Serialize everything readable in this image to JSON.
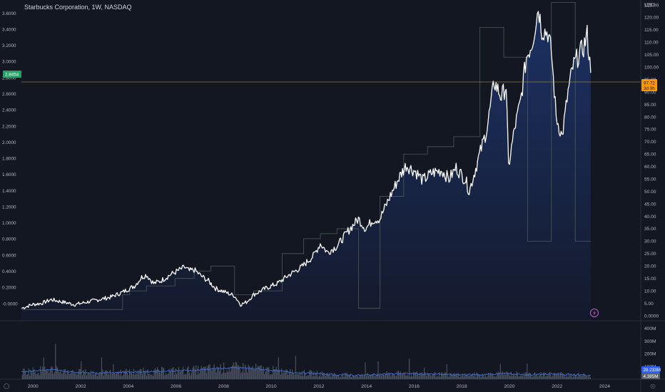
{
  "header": {
    "title": "Starbucks Corporation, 1W, NASDAQ",
    "currency": "USD"
  },
  "badges": {
    "left_value": "2.8454",
    "last_price": "97.72",
    "last_countdown": "3d 9h",
    "volume_avg": "28.233M",
    "volume_last": "4.385M"
  },
  "colors": {
    "background": "#131722",
    "price_line": "#ffffff",
    "area_top": "#1c3163",
    "area_bottom": "#141a2c",
    "step_line": "#4b5a58",
    "left_badge": "#26a269",
    "price_badge": "#ff9800",
    "volume_bars": "#4e5566",
    "volume_ma": "#3f6fd1",
    "bolt_icon": "#c35bd6"
  },
  "chart_data": {
    "type": "line",
    "title": "Starbucks Corporation, 1W, NASDAQ",
    "right_axis_unit": "USD",
    "right_axis_ticks": [
      "125.00",
      "120.00",
      "115.00",
      "110.00",
      "105.00",
      "100.00",
      "95.00",
      "90.00",
      "85.00",
      "80.00",
      "75.00",
      "70.00",
      "65.00",
      "60.00",
      "55.00",
      "50.00",
      "45.00",
      "40.00",
      "35.00",
      "30.00",
      "25.00",
      "20.00",
      "15.00",
      "10.00",
      "5.00",
      "0.0000"
    ],
    "left_axis_ticks": [
      "3.6000",
      "3.4000",
      "3.2000",
      "3.0000",
      "2.8000",
      "2.6000",
      "2.4000",
      "2.2000",
      "2.0000",
      "1.8000",
      "1.6000",
      "1.4000",
      "1.2000",
      "1.0000",
      "0.8000",
      "0.6000",
      "0.4000",
      "0.2000",
      "-0.0000"
    ],
    "x_axis_ticks": [
      "2000",
      "2002",
      "2004",
      "2006",
      "2008",
      "2010",
      "2012",
      "2014",
      "2016",
      "2018",
      "2020",
      "2022",
      "2024"
    ],
    "volume_axis_ticks": [
      "400M",
      "300M",
      "200M",
      "100M"
    ],
    "ylim": [
      -2,
      127
    ],
    "xlim": [
      1999.75,
      2025.75
    ],
    "price_series": [
      [
        1999.75,
        3.0
      ],
      [
        2000.2,
        4.5
      ],
      [
        2000.6,
        5.0
      ],
      [
        2001.0,
        6.5
      ],
      [
        2001.5,
        5.5
      ],
      [
        2002.0,
        4.5
      ],
      [
        2002.5,
        5.5
      ],
      [
        2003.0,
        6.5
      ],
      [
        2003.5,
        7.5
      ],
      [
        2004.0,
        9.5
      ],
      [
        2004.5,
        12.0
      ],
      [
        2004.8,
        15.5
      ],
      [
        2005.0,
        16.5
      ],
      [
        2005.3,
        13.0
      ],
      [
        2005.6,
        14.0
      ],
      [
        2006.0,
        16.5
      ],
      [
        2006.3,
        18.0
      ],
      [
        2006.6,
        19.5
      ],
      [
        2006.8,
        18.0
      ],
      [
        2007.0,
        18.5
      ],
      [
        2007.3,
        16.0
      ],
      [
        2007.6,
        14.0
      ],
      [
        2007.9,
        11.0
      ],
      [
        2008.3,
        9.5
      ],
      [
        2008.7,
        8.0
      ],
      [
        2008.95,
        4.5
      ],
      [
        2009.2,
        5.5
      ],
      [
        2009.5,
        8.5
      ],
      [
        2010.0,
        11.0
      ],
      [
        2010.5,
        13.0
      ],
      [
        2011.0,
        16.5
      ],
      [
        2011.5,
        19.5
      ],
      [
        2012.0,
        24.0
      ],
      [
        2012.3,
        29.0
      ],
      [
        2012.6,
        25.5
      ],
      [
        2013.0,
        28.0
      ],
      [
        2013.5,
        34.5
      ],
      [
        2013.9,
        39.0
      ],
      [
        2014.2,
        35.0
      ],
      [
        2014.5,
        38.5
      ],
      [
        2014.8,
        39.0
      ],
      [
        2015.2,
        47.5
      ],
      [
        2015.6,
        55.5
      ],
      [
        2015.9,
        60.5
      ],
      [
        2016.3,
        58.0
      ],
      [
        2016.6,
        54.5
      ],
      [
        2017.0,
        57.5
      ],
      [
        2017.4,
        58.5
      ],
      [
        2017.7,
        55.0
      ],
      [
        2018.0,
        59.5
      ],
      [
        2018.4,
        54.5
      ],
      [
        2018.55,
        50.0
      ],
      [
        2018.9,
        62.0
      ],
      [
        2019.3,
        75.5
      ],
      [
        2019.6,
        94.0
      ],
      [
        2019.9,
        88.0
      ],
      [
        2020.1,
        92.5
      ],
      [
        2020.2,
        60.0
      ],
      [
        2020.45,
        75.0
      ],
      [
        2020.7,
        86.0
      ],
      [
        2020.95,
        104.0
      ],
      [
        2021.2,
        110.0
      ],
      [
        2021.45,
        124.0
      ],
      [
        2021.6,
        115.0
      ],
      [
        2021.85,
        114.0
      ],
      [
        2022.0,
        106.0
      ],
      [
        2022.2,
        80.0
      ],
      [
        2022.45,
        72.0
      ],
      [
        2022.7,
        90.0
      ],
      [
        2022.9,
        100.0
      ],
      [
        2023.1,
        104.0
      ],
      [
        2023.35,
        108.0
      ],
      [
        2023.5,
        113.0
      ],
      [
        2023.65,
        97.72
      ]
    ],
    "step_series": [
      [
        1999.75,
        2.5
      ],
      [
        2004.0,
        8.5
      ],
      [
        2004.3,
        10.0
      ],
      [
        2005.0,
        12.0
      ],
      [
        2006.2,
        15.0
      ],
      [
        2007.0,
        18.0
      ],
      [
        2007.7,
        20.0
      ],
      [
        2008.7,
        8.5
      ],
      [
        2009.5,
        10.0
      ],
      [
        2010.7,
        25.0
      ],
      [
        2011.6,
        31.0
      ],
      [
        2012.3,
        33.0
      ],
      [
        2013.0,
        35.0
      ],
      [
        2013.9,
        3.0
      ],
      [
        2014.8,
        48.0
      ],
      [
        2015.8,
        65.0
      ],
      [
        2016.8,
        68.0
      ],
      [
        2017.9,
        72.0
      ],
      [
        2019.0,
        116.0
      ],
      [
        2020.0,
        104.0
      ],
      [
        2021.0,
        30.0
      ],
      [
        2022.0,
        126.0
      ],
      [
        2023.0,
        30.0
      ],
      [
        2023.65,
        30.0
      ]
    ],
    "volume_axis_max": 450,
    "volume_units": "M",
    "volume_ma_series": [
      [
        1999.75,
        60
      ],
      [
        2001.0,
        75
      ],
      [
        2002.0,
        55
      ],
      [
        2003.0,
        50
      ],
      [
        2004.0,
        55
      ],
      [
        2005.0,
        60
      ],
      [
        2006.0,
        65
      ],
      [
        2007.0,
        70
      ],
      [
        2008.0,
        85
      ],
      [
        2009.0,
        90
      ],
      [
        2010.0,
        75
      ],
      [
        2011.0,
        55
      ],
      [
        2012.0,
        45
      ],
      [
        2013.0,
        35
      ],
      [
        2014.0,
        30
      ],
      [
        2015.0,
        40
      ],
      [
        2016.0,
        45
      ],
      [
        2017.0,
        38
      ],
      [
        2018.0,
        35
      ],
      [
        2019.0,
        35
      ],
      [
        2020.0,
        45
      ],
      [
        2021.0,
        35
      ],
      [
        2022.0,
        40
      ],
      [
        2023.0,
        35
      ],
      [
        2023.65,
        28.233
      ]
    ],
    "last_price": 97.72,
    "reference_line_left_value": 2.8454
  }
}
